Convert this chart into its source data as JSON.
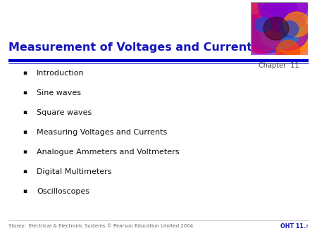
{
  "title": "Measurement of Voltages and Currents",
  "title_color": "#1515BB",
  "chapter_label": "Chapter  11",
  "chapter_color": "#444444",
  "bullet_items": [
    "Introduction",
    "Sine waves",
    "Square waves",
    "Measuring Voltages and Currents",
    "Analogue Ammeters and Voltmeters",
    "Digital Multimeters",
    "Oscilloscopes"
  ],
  "bullet_color": "#111111",
  "footer_left": "Storey:  Electrical & Electronic Systems © Pearson Education Limited 2004",
  "footer_right": "OHT 11.♯",
  "footer_color": "#666666",
  "footer_right_color": "#1515BB",
  "bg_color": "#ffffff",
  "line_color_blue": "#0000CC",
  "title_fontsize": 11.5,
  "bullet_fontsize": 8.0,
  "chapter_fontsize": 7.0,
  "footer_fontsize": 5.0
}
